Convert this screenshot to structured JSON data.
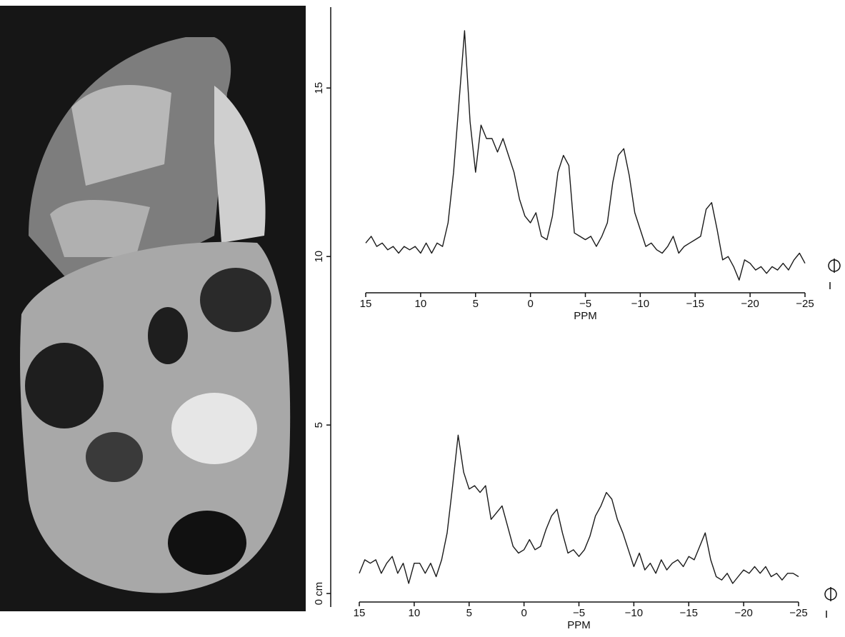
{
  "chart_data": {
    "type": "line",
    "ylim": [
      -0.4,
      17.4
    ],
    "yticks": [
      {
        "value": 0,
        "label": "0 cm"
      },
      5,
      10,
      15
    ],
    "panels": [
      {
        "xlabel": "PPM",
        "color": "#1a1a1a",
        "xlim": [
          15,
          -25
        ],
        "xticks": [
          15,
          10,
          5,
          0,
          {
            "value": -5,
            "label": "−5"
          },
          {
            "value": -10,
            "label": "−10"
          },
          {
            "value": -15,
            "label": "−15"
          },
          {
            "value": -20,
            "label": "−20"
          },
          {
            "value": -25,
            "label": "−25"
          }
        ],
        "x": [
          15,
          14.5,
          14,
          13.5,
          13,
          12.5,
          12,
          11.5,
          11,
          10.5,
          10,
          9.5,
          9,
          8.5,
          8,
          7.5,
          7,
          6.5,
          6,
          5.5,
          5,
          4.5,
          4,
          3.5,
          3,
          2.5,
          2,
          1.5,
          1,
          0.5,
          0,
          -0.5,
          -1,
          -1.5,
          -2,
          -2.5,
          -3,
          -3.5,
          -4,
          -4.5,
          -5,
          -5.5,
          -6,
          -6.5,
          -7,
          -7.5,
          -8,
          -8.5,
          -9,
          -9.5,
          -10,
          -10.5,
          -11,
          -11.5,
          -12,
          -12.5,
          -13,
          -13.5,
          -14,
          -14.5,
          -15,
          -15.5,
          -16,
          -16.5,
          -17,
          -17.5,
          -18,
          -18.5,
          -19,
          -19.5,
          -20,
          -20.5,
          -21,
          -21.5,
          -22,
          -22.5,
          -23,
          -23.5,
          -24,
          -24.5,
          -25
        ],
        "values": [
          10.4,
          10.6,
          10.3,
          10.4,
          10.2,
          10.3,
          10.1,
          10.3,
          10.2,
          10.3,
          10.1,
          10.4,
          10.1,
          10.4,
          10.3,
          11.0,
          12.5,
          14.6,
          16.7,
          14.0,
          12.5,
          13.9,
          13.5,
          13.5,
          13.1,
          13.5,
          13.0,
          12.5,
          11.7,
          11.2,
          11.0,
          11.3,
          10.6,
          10.5,
          11.2,
          12.5,
          13.0,
          12.7,
          10.7,
          10.6,
          10.5,
          10.6,
          10.3,
          10.6,
          11.0,
          12.2,
          13.0,
          13.2,
          12.4,
          11.3,
          10.8,
          10.3,
          10.4,
          10.2,
          10.1,
          10.3,
          10.6,
          10.1,
          10.3,
          10.4,
          10.5,
          10.6,
          11.4,
          11.6,
          10.8,
          9.9,
          10.0,
          9.7,
          9.3,
          9.9,
          9.8,
          9.6,
          9.7,
          9.5,
          9.7,
          9.6,
          9.8,
          9.6,
          9.9,
          10.1,
          9.8
        ]
      },
      {
        "xlabel": "PPM",
        "color": "#1a1a1a",
        "xlim": [
          15,
          -25
        ],
        "xticks": [
          15,
          10,
          5,
          0,
          {
            "value": -5,
            "label": "−5"
          },
          {
            "value": -10,
            "label": "−10"
          },
          {
            "value": -15,
            "label": "−15"
          },
          {
            "value": -20,
            "label": "−20"
          },
          {
            "value": -25,
            "label": "−25"
          }
        ],
        "x": [
          15,
          14.5,
          14,
          13.5,
          13,
          12.5,
          12,
          11.5,
          11,
          10.5,
          10,
          9.5,
          9,
          8.5,
          8,
          7.5,
          7,
          6.5,
          6,
          5.5,
          5,
          4.5,
          4,
          3.5,
          3,
          2.5,
          2,
          1.5,
          1,
          0.5,
          0,
          -0.5,
          -1,
          -1.5,
          -2,
          -2.5,
          -3,
          -3.5,
          -4,
          -4.5,
          -5,
          -5.5,
          -6,
          -6.5,
          -7,
          -7.5,
          -8,
          -8.5,
          -9,
          -9.5,
          -10,
          -10.5,
          -11,
          -11.5,
          -12,
          -12.5,
          -13,
          -13.5,
          -14,
          -14.5,
          -15,
          -15.5,
          -16,
          -16.5,
          -17,
          -17.5,
          -18,
          -18.5,
          -19,
          -19.5,
          -20,
          -20.5,
          -21,
          -21.5,
          -22,
          -22.5,
          -23,
          -23.5,
          -24,
          -24.5,
          -25
        ],
        "values": [
          0.6,
          1.0,
          0.9,
          1.0,
          0.6,
          0.9,
          1.1,
          0.6,
          0.9,
          0.3,
          0.9,
          0.9,
          0.6,
          0.9,
          0.5,
          1.0,
          1.8,
          3.2,
          4.7,
          3.6,
          3.1,
          3.2,
          3.0,
          3.2,
          2.2,
          2.4,
          2.6,
          2.0,
          1.4,
          1.2,
          1.3,
          1.6,
          1.3,
          1.4,
          1.9,
          2.3,
          2.5,
          1.8,
          1.2,
          1.3,
          1.1,
          1.3,
          1.7,
          2.3,
          2.6,
          3.0,
          2.8,
          2.2,
          1.8,
          1.3,
          0.8,
          1.2,
          0.7,
          0.9,
          0.6,
          1.0,
          0.7,
          0.9,
          1.0,
          0.8,
          1.1,
          1.0,
          1.4,
          1.8,
          1.0,
          0.5,
          0.4,
          0.6,
          0.3,
          0.5,
          0.7,
          0.6,
          0.8,
          0.6,
          0.8,
          0.5,
          0.6,
          0.4,
          0.6,
          0.6,
          0.5
        ]
      }
    ]
  }
}
